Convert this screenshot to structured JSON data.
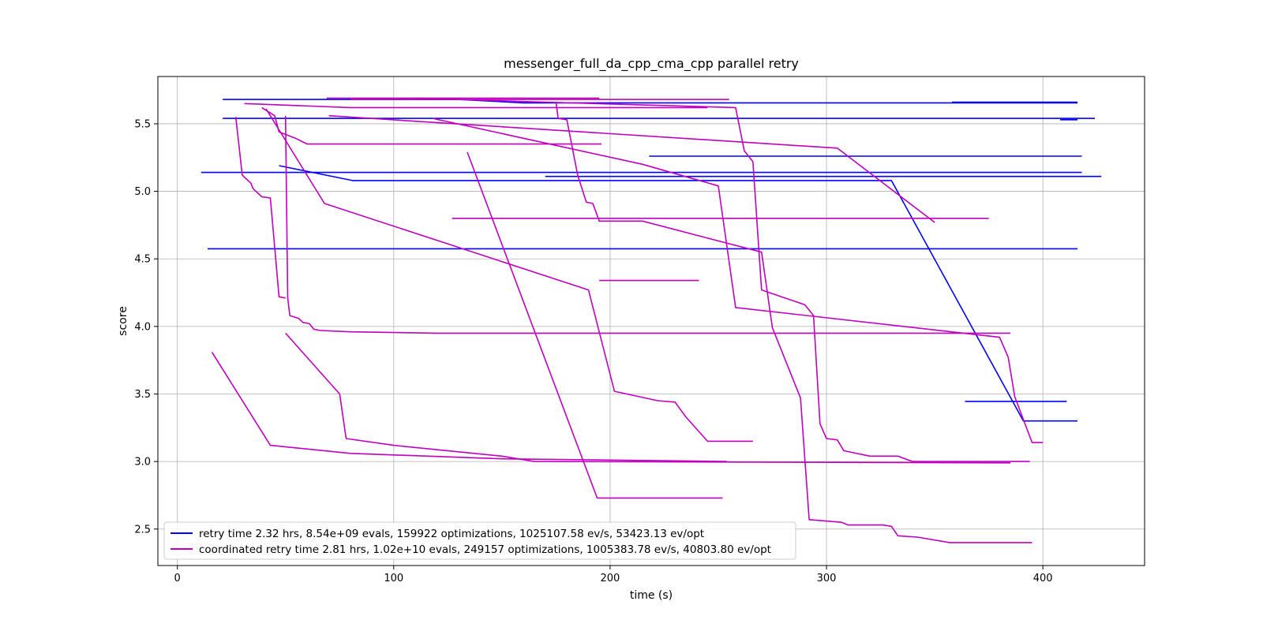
{
  "chart_data": {
    "type": "line",
    "title": "messenger_full_da_cpp_cma_cpp parallel retry",
    "xlabel": "time (s)",
    "ylabel": "score",
    "xlim": [
      -9,
      447
    ],
    "ylim": [
      2.23,
      5.85
    ],
    "xticks": [
      0,
      100,
      200,
      300,
      400
    ],
    "yticks": [
      2.5,
      3.0,
      3.5,
      4.0,
      4.5,
      5.0,
      5.5
    ],
    "grid": true,
    "legend_position": "lower-left",
    "series": [
      {
        "name": "retry time 2.32 hrs, 8.54e+09 evals, 159922 optimizations, 1025107.58 ev/s, 53423.13 ev/opt",
        "color": "#0000ff",
        "lines": [
          [
            [
              21,
              5.68
            ],
            [
              130,
              5.68
            ],
            [
              160,
              5.655
            ],
            [
              416,
              5.655
            ]
          ],
          [
            [
              358,
              5.66
            ],
            [
              416,
              5.66
            ]
          ],
          [
            [
              21,
              5.54
            ],
            [
              424,
              5.54
            ]
          ],
          [
            [
              408,
              5.53
            ],
            [
              416,
              5.53
            ]
          ],
          [
            [
              218,
              5.26
            ],
            [
              418,
              5.26
            ]
          ],
          [
            [
              11,
              5.14
            ],
            [
              418,
              5.14
            ]
          ],
          [
            [
              170,
              5.11
            ],
            [
              427,
              5.11
            ]
          ],
          [
            [
              47,
              5.19
            ],
            [
              81,
              5.08
            ],
            [
              330,
              5.08
            ],
            [
              391,
              3.3
            ],
            [
              416,
              3.3
            ]
          ],
          [
            [
              14,
              4.575
            ],
            [
              416,
              4.575
            ]
          ],
          [
            [
              364,
              3.445
            ],
            [
              411,
              3.445
            ]
          ]
        ]
      },
      {
        "name": "coordinated retry time 2.81 hrs, 1.02e+10 evals, 249157 optimizations, 1005383.78 ev/s, 40803.80 ev/opt",
        "color": "#bf00bf",
        "lines": [
          [
            [
              69,
              5.69
            ],
            [
              195,
              5.69
            ]
          ],
          [
            [
              80,
              5.68
            ],
            [
              255,
              5.68
            ]
          ],
          [
            [
              31,
              5.65
            ],
            [
              80,
              5.62
            ],
            [
              245,
              5.62
            ]
          ],
          [
            [
              110,
              5.69
            ],
            [
              170,
              5.66
            ],
            [
              258,
              5.62
            ],
            [
              262,
              5.3
            ],
            [
              266,
              5.22
            ],
            [
              270,
              4.27
            ],
            [
              290,
              4.16
            ],
            [
              294,
              4.08
            ],
            [
              297,
              3.28
            ],
            [
              300,
              3.17
            ],
            [
              305,
              3.16
            ],
            [
              308,
              3.08
            ],
            [
              320,
              3.04
            ],
            [
              333,
              3.04
            ],
            [
              338,
              3.01
            ],
            [
              340,
              3.0
            ],
            [
              394,
              3.0
            ]
          ],
          [
            [
              70,
              5.56
            ],
            [
              305,
              5.32
            ],
            [
              350,
              4.77
            ]
          ],
          [
            [
              175,
              5.66
            ],
            [
              176,
              5.54
            ],
            [
              180,
              5.53
            ],
            [
              185,
              5.12
            ],
            [
              189,
              4.92
            ],
            [
              192,
              4.91
            ],
            [
              195,
              4.78
            ],
            [
              215,
              4.78
            ],
            [
              270,
              4.55
            ],
            [
              275,
              3.99
            ],
            [
              288,
              3.47
            ],
            [
              292,
              2.57
            ],
            [
              307,
              2.55
            ],
            [
              310,
              2.53
            ],
            [
              326,
              2.53
            ],
            [
              330,
              2.52
            ],
            [
              333,
              2.45
            ],
            [
              342,
              2.44
            ],
            [
              357,
              2.4
            ],
            [
              395,
              2.4
            ]
          ],
          [
            [
              118,
              5.54
            ],
            [
              215,
              5.2
            ],
            [
              250,
              5.04
            ],
            [
              258,
              4.14
            ],
            [
              380,
              3.92
            ],
            [
              384,
              3.77
            ],
            [
              387,
              3.48
            ],
            [
              395,
              3.14
            ],
            [
              400,
              3.14
            ]
          ],
          [
            [
              39,
              5.62
            ],
            [
              45,
              5.56
            ],
            [
              47,
              5.44
            ],
            [
              55,
              5.39
            ],
            [
              60,
              5.35
            ],
            [
              196,
              5.35
            ]
          ],
          [
            [
              27,
              5.55
            ],
            [
              30,
              5.12
            ],
            [
              34,
              5.06
            ],
            [
              35,
              5.02
            ],
            [
              39,
              4.96
            ],
            [
              43,
              4.95
            ],
            [
              47,
              4.22
            ],
            [
              50,
              4.21
            ]
          ],
          [
            [
              50,
              5.56
            ],
            [
              51,
              4.21
            ],
            [
              52,
              4.08
            ],
            [
              56,
              4.06
            ],
            [
              58,
              4.03
            ],
            [
              61,
              4.02
            ],
            [
              63,
              3.98
            ],
            [
              66,
              3.97
            ],
            [
              80,
              3.96
            ],
            [
              120,
              3.95
            ],
            [
              385,
              3.95
            ]
          ],
          [
            [
              41,
              5.61
            ],
            [
              68,
              4.91
            ],
            [
              190,
              4.27
            ],
            [
              202,
              3.52
            ],
            [
              222,
              3.45
            ],
            [
              230,
              3.44
            ],
            [
              235,
              3.33
            ],
            [
              245,
              3.15
            ],
            [
              266,
              3.15
            ]
          ],
          [
            [
              134,
              5.29
            ],
            [
              194,
              2.73
            ],
            [
              252,
              2.73
            ]
          ],
          [
            [
              127,
              4.8
            ],
            [
              375,
              4.8
            ]
          ],
          [
            [
              195,
              4.34
            ],
            [
              241,
              4.34
            ]
          ],
          [
            [
              50,
              3.95
            ],
            [
              75,
              3.5
            ],
            [
              78,
              3.17
            ],
            [
              100,
              3.12
            ],
            [
              150,
              3.04
            ],
            [
              165,
              3.0
            ],
            [
              385,
              2.99
            ]
          ],
          [
            [
              16,
              3.81
            ],
            [
              43,
              3.12
            ],
            [
              80,
              3.06
            ],
            [
              150,
              3.02
            ],
            [
              254,
              3.0
            ]
          ]
        ]
      }
    ]
  }
}
